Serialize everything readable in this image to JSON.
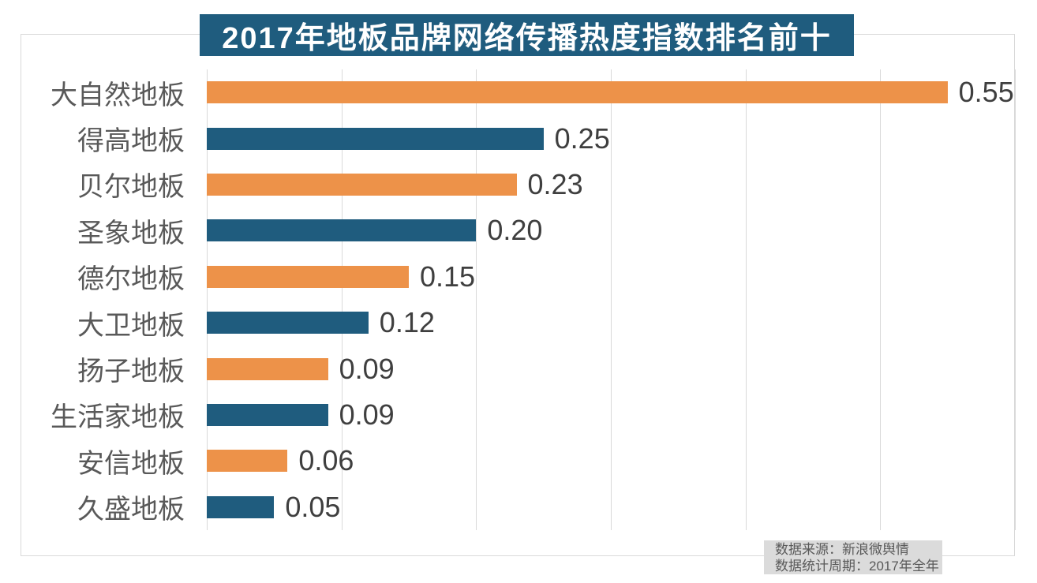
{
  "chart_data": {
    "type": "bar",
    "orientation": "horizontal",
    "title": "2017年地板品牌网络传播热度指数排名前十",
    "categories": [
      "大自然地板",
      "得高地板",
      "贝尔地板",
      "圣象地板",
      "德尔地板",
      "大卫地板",
      "扬子地板",
      "生活家地板",
      "安信地板",
      "久盛地板"
    ],
    "values": [
      0.55,
      0.25,
      0.23,
      0.2,
      0.15,
      0.12,
      0.09,
      0.09,
      0.06,
      0.05
    ],
    "data_labels": [
      "0.55",
      "0.25",
      "0.23",
      "0.20",
      "0.15",
      "0.12",
      "0.09",
      "0.09",
      "0.06",
      "0.05"
    ],
    "xlabel": "",
    "ylabel": "",
    "xlim": [
      0,
      0.6
    ],
    "gridline_step": 0.1,
    "grid": "vertical",
    "legend": "none",
    "series_colors": [
      "#ED9249",
      "#1F5C7E"
    ]
  },
  "colors": {
    "accent_orange": "#ED9249",
    "accent_teal": "#1F5C7E",
    "gridline": "#D9D9D9",
    "category_text": "#595959",
    "value_text": "#3F3F3F",
    "title_text": "#FFFFFF",
    "source_bg": "#DBDBDB",
    "source_text": "#595959"
  },
  "source_note": {
    "line1": "数据来源：新浪微舆情",
    "line2": "数据统计周期：2017年全年"
  }
}
